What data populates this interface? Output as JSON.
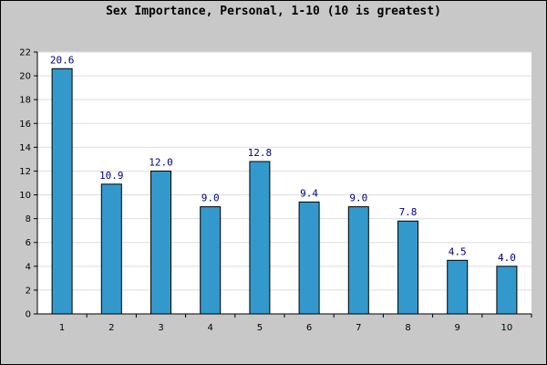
{
  "chart_data": {
    "type": "bar",
    "title": "Sex Importance, Personal, 1-10 (10 is greatest)",
    "xlabel": "",
    "ylabel": "",
    "categories": [
      "1",
      "2",
      "3",
      "4",
      "5",
      "6",
      "7",
      "8",
      "9",
      "10"
    ],
    "values": [
      20.6,
      10.9,
      12.0,
      9.0,
      12.8,
      9.4,
      9.0,
      7.8,
      4.5,
      4.0
    ],
    "data_labels": [
      "20.6",
      "10.9",
      "12.0",
      "9.0",
      "12.8",
      "9.4",
      "9.0",
      "7.8",
      "4.5",
      "4.0"
    ],
    "ylim": [
      0,
      22
    ],
    "yticks": [
      0,
      2,
      4,
      6,
      8,
      10,
      12,
      14,
      16,
      18,
      20,
      22
    ],
    "grid": true,
    "legend": "none",
    "colors": {
      "bar": "#3399cc",
      "bar_edge": "#000000",
      "plot_background": "#ffffff",
      "grid": "#dddddd",
      "frame_background": "#c8c8c8",
      "data_label": "#000080"
    }
  }
}
